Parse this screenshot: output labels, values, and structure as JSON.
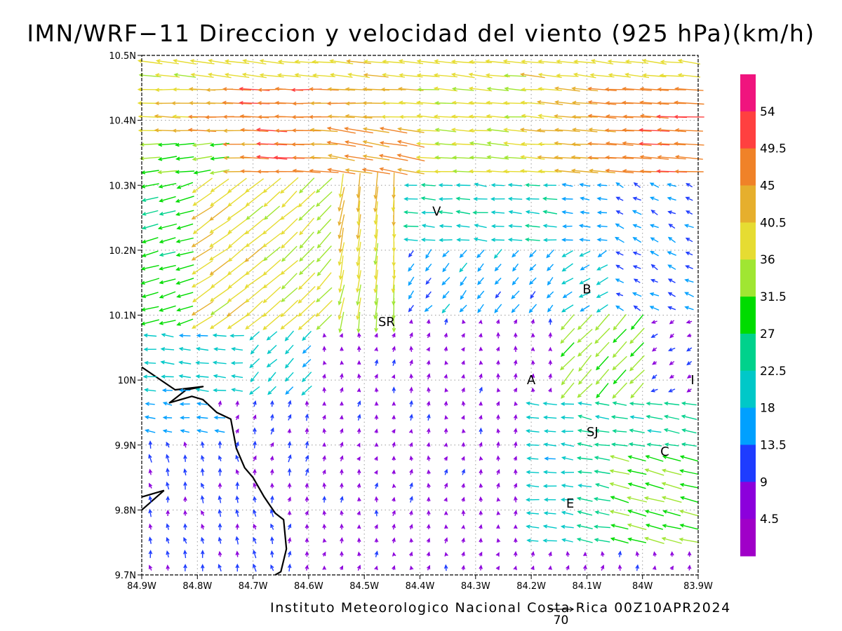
{
  "title": "IMN/WRF−11 Direccion y velocidad del viento (925 hPa)(km/h)",
  "footer": "Instituto Meteorologico Nacional Costa Rica 00Z10APR2024",
  "reference_vector": {
    "label": "70",
    "speed": 70
  },
  "axes": {
    "x_ticks": [
      "84.9W",
      "84.8W",
      "84.7W",
      "84.6W",
      "84.5W",
      "84.4W",
      "84.3W",
      "84.2W",
      "84.1W",
      "84W",
      "83.9W"
    ],
    "y_ticks": [
      "10.5N",
      "10.4N",
      "10.3N",
      "10.2N",
      "10.1N",
      "10N",
      "9.9N",
      "9.8N",
      "9.7N"
    ],
    "x_range": [
      -84.9,
      -83.9
    ],
    "y_range": [
      9.7,
      10.5
    ],
    "grid": true
  },
  "colorbar": {
    "labels": [
      "54",
      "49.5",
      "45",
      "40.5",
      "36",
      "31.5",
      "27",
      "22.5",
      "18",
      "13.5",
      "9",
      "4.5"
    ],
    "colors": [
      "#f0147e",
      "#ff4040",
      "#f08228",
      "#e6af2d",
      "#e6dc32",
      "#a0e632",
      "#00dc00",
      "#00d28c",
      "#00c8c8",
      "#00a0ff",
      "#1e3cff",
      "#8c00dc",
      "#a000c8"
    ]
  },
  "places": [
    {
      "label": "V",
      "lon": -84.37,
      "lat": 10.26
    },
    {
      "label": "B",
      "lon": -84.1,
      "lat": 10.14
    },
    {
      "label": "SR",
      "lon": -84.46,
      "lat": 10.09
    },
    {
      "label": "A",
      "lon": -84.2,
      "lat": 10.0
    },
    {
      "label": "I",
      "lon": -83.91,
      "lat": 10.0
    },
    {
      "label": "SJ",
      "lon": -84.09,
      "lat": 9.92
    },
    {
      "label": "C",
      "lon": -83.96,
      "lat": 9.89
    },
    {
      "label": "E",
      "lon": -84.13,
      "lat": 9.81
    }
  ],
  "chart_data": {
    "type": "vector_field",
    "title": "IMN/WRF−11 Direccion y velocidad del viento (925 hPa)(km/h)",
    "units": "km/h",
    "level": "925 hPa",
    "valid_time": "00Z10APR2024",
    "x": [
      -84.9,
      -83.9
    ],
    "y": [
      9.7,
      10.5
    ],
    "speed_scale": [
      4.5,
      9,
      13.5,
      18,
      22.5,
      27,
      31.5,
      36,
      40.5,
      45,
      49.5,
      54
    ],
    "regimes": [
      {
        "region": "north (10.3N-10.5N)",
        "direction": "from east",
        "speed_range": [
          31.5,
          49.5
        ]
      },
      {
        "region": "corridor near 84.45W-84.55W, 10.1N-10.3N",
        "direction": "from north",
        "speed_range": [
          27,
          54
        ]
      },
      {
        "region": "northwest (84.9W-84.6W, 10.1N-10.3N)",
        "direction": "from northeast",
        "speed_range": [
          27,
          45
        ]
      },
      {
        "region": "western coastal band (84.9W-84.7W, 9.9N-10.1N)",
        "direction": "from east",
        "speed_range": [
          13.5,
          27
        ]
      },
      {
        "region": "south-central (84.7W-84.2W, 9.7N-10.0N)",
        "direction": "from south",
        "speed_range": [
          4.5,
          13.5
        ]
      },
      {
        "region": "east (84.1W-83.9W, 9.75N-10.1N)",
        "direction": "from northeast",
        "speed_range": [
          18,
          40.5
        ]
      }
    ],
    "coastline": [
      [
        -84.9,
        10.02
      ],
      [
        -84.84,
        9.985
      ],
      [
        -84.79,
        9.99
      ],
      [
        -84.82,
        9.985
      ],
      [
        -84.85,
        9.965
      ],
      [
        -84.81,
        9.975
      ],
      [
        -84.79,
        9.97
      ],
      [
        -84.765,
        9.95
      ],
      [
        -84.74,
        9.94
      ],
      [
        -84.73,
        9.895
      ],
      [
        -84.715,
        9.865
      ],
      [
        -84.7,
        9.85
      ],
      [
        -84.68,
        9.82
      ],
      [
        -84.66,
        9.795
      ],
      [
        -84.645,
        9.785
      ],
      [
        -84.64,
        9.74
      ],
      [
        -84.65,
        9.705
      ],
      [
        -84.66,
        9.7
      ]
    ],
    "island": [
      [
        -84.9,
        9.8
      ],
      [
        -84.86,
        9.83
      ],
      [
        -84.9,
        9.82
      ]
    ]
  }
}
